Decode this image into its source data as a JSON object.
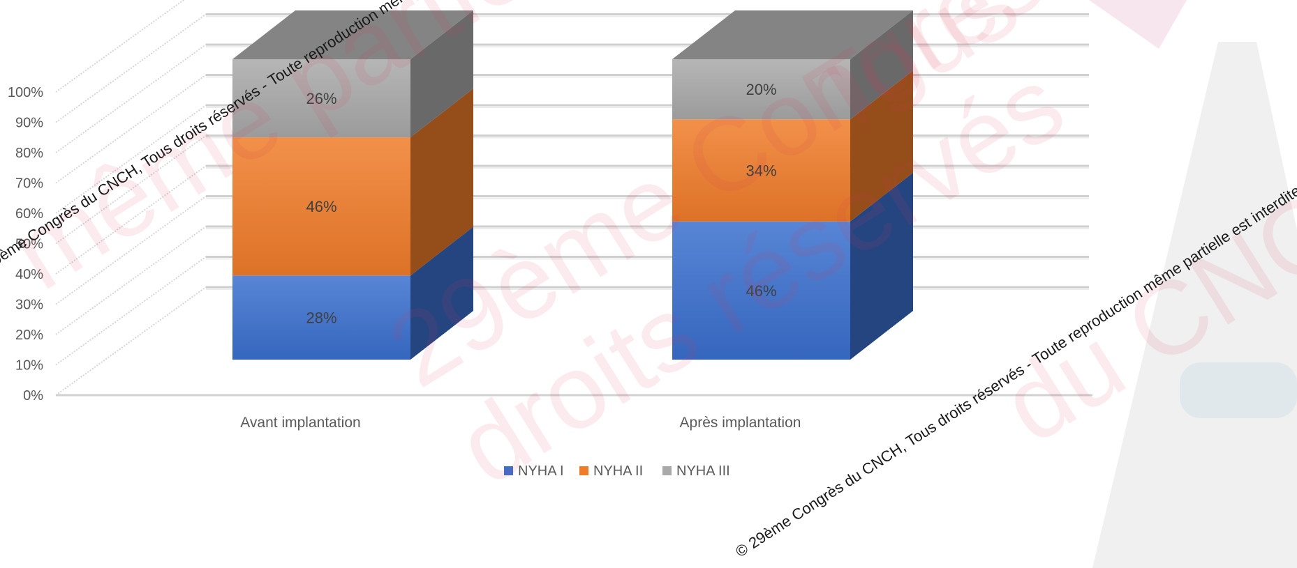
{
  "chart_data": {
    "type": "bar",
    "stacked": true,
    "three_d": true,
    "categories": [
      "Avant implantation",
      "Après implantation"
    ],
    "series": [
      {
        "name": "NYHA I",
        "values": [
          28,
          46
        ],
        "color": "#3a6fce",
        "labels": [
          "28%",
          "46%"
        ]
      },
      {
        "name": "NYHA II",
        "values": [
          46,
          34
        ],
        "color": "#f07c2a",
        "labels": [
          "46%",
          "34%"
        ]
      },
      {
        "name": "NYHA III",
        "values": [
          26,
          20
        ],
        "color": "#a9a9a9",
        "labels": [
          "26%",
          "20%"
        ]
      }
    ],
    "yticks": [
      "0%",
      "10%",
      "20%",
      "30%",
      "40%",
      "50%",
      "60%",
      "70%",
      "80%",
      "90%",
      "100%"
    ],
    "ylim": [
      0,
      100
    ],
    "grid": true,
    "legend_position": "bottom"
  },
  "legend": {
    "items": [
      {
        "label": "NYHA I",
        "color": "#3a6fce"
      },
      {
        "label": "NYHA II",
        "color": "#f07c2a"
      },
      {
        "label": "NYHA III",
        "color": "#a9a9a9"
      }
    ]
  },
  "watermark": {
    "line": "© 29ème Congrès du CNCH, Tous droits réservés - Toute reproduction même partielle est interdite"
  }
}
